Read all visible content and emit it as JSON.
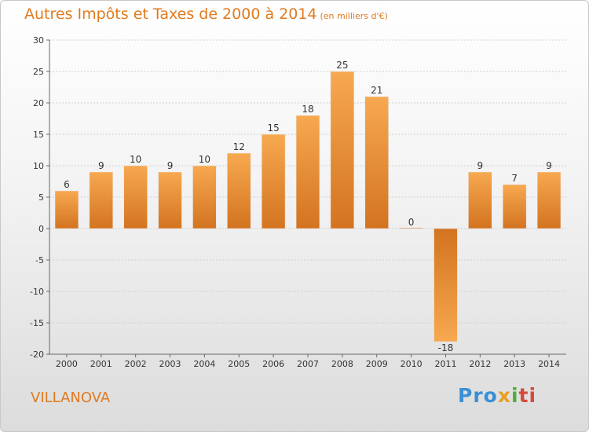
{
  "chart_data": {
    "type": "bar",
    "title": "Autres Impôts et Taxes de 2000 à 2014",
    "subtitle": "(en milliers d'€)",
    "categories": [
      "2000",
      "2001",
      "2002",
      "2003",
      "2004",
      "2005",
      "2006",
      "2007",
      "2008",
      "2009",
      "2010",
      "2011",
      "2012",
      "2013",
      "2014"
    ],
    "values": [
      6,
      9,
      10,
      9,
      10,
      12,
      15,
      18,
      25,
      21,
      0,
      -18,
      9,
      7,
      9
    ],
    "ylim": [
      -20,
      30
    ],
    "yticks": [
      30,
      25,
      20,
      15,
      10,
      5,
      0,
      -5,
      -10,
      -15,
      -20
    ],
    "grid": true,
    "bar_color_light": "#f7a950",
    "bar_color_dark": "#d37320"
  },
  "footer": {
    "place": "VILLANOVA",
    "logo": [
      "Pro",
      "x",
      "i",
      "ti"
    ]
  }
}
